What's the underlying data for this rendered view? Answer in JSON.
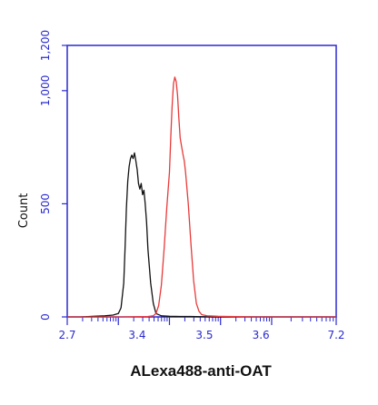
{
  "chart_data": {
    "type": "line",
    "xlabel": "ALexa488-anti-OAT",
    "ylabel": "Count",
    "y_ticks": [
      {
        "value": 0,
        "label": "0"
      },
      {
        "value": 500,
        "label": "500"
      },
      {
        "value": 1000,
        "label": "1,000"
      },
      {
        "value": 1200,
        "label": "1,200"
      }
    ],
    "x_ticks": [
      "2.7",
      "3.4",
      "3.5",
      "3.6",
      "7.2"
    ],
    "ylim": [
      0,
      1200
    ],
    "grid": false,
    "axis_color": "#2a2ad0",
    "series": [
      {
        "color": "#111111",
        "points": [
          [
            0.0,
            0
          ],
          [
            0.05,
            0
          ],
          [
            0.1,
            3
          ],
          [
            0.14,
            5
          ],
          [
            0.17,
            8
          ],
          [
            0.19,
            15
          ],
          [
            0.2,
            40
          ],
          [
            0.21,
            150
          ],
          [
            0.215,
            300
          ],
          [
            0.22,
            480
          ],
          [
            0.225,
            600
          ],
          [
            0.23,
            665
          ],
          [
            0.235,
            700
          ],
          [
            0.24,
            715
          ],
          [
            0.245,
            700
          ],
          [
            0.25,
            725
          ],
          [
            0.255,
            690
          ],
          [
            0.26,
            650
          ],
          [
            0.265,
            590
          ],
          [
            0.27,
            565
          ],
          [
            0.275,
            590
          ],
          [
            0.28,
            540
          ],
          [
            0.285,
            560
          ],
          [
            0.29,
            500
          ],
          [
            0.295,
            420
          ],
          [
            0.3,
            300
          ],
          [
            0.31,
            150
          ],
          [
            0.32,
            60
          ],
          [
            0.33,
            15
          ],
          [
            0.35,
            5
          ],
          [
            0.38,
            3
          ],
          [
            0.42,
            2
          ],
          [
            0.46,
            2
          ],
          [
            0.5,
            1
          ],
          [
            0.55,
            0
          ],
          [
            0.65,
            0
          ],
          [
            0.8,
            0
          ],
          [
            1.0,
            0
          ]
        ]
      },
      {
        "color": "#e83a3a",
        "points": [
          [
            0.0,
            0
          ],
          [
            0.2,
            0
          ],
          [
            0.3,
            2
          ],
          [
            0.32,
            5
          ],
          [
            0.33,
            15
          ],
          [
            0.34,
            50
          ],
          [
            0.35,
            140
          ],
          [
            0.36,
            300
          ],
          [
            0.37,
            480
          ],
          [
            0.38,
            640
          ],
          [
            0.385,
            800
          ],
          [
            0.39,
            930
          ],
          [
            0.395,
            1030
          ],
          [
            0.4,
            1060
          ],
          [
            0.405,
            1040
          ],
          [
            0.41,
            980
          ],
          [
            0.415,
            880
          ],
          [
            0.42,
            790
          ],
          [
            0.43,
            720
          ],
          [
            0.435,
            690
          ],
          [
            0.44,
            640
          ],
          [
            0.45,
            500
          ],
          [
            0.46,
            320
          ],
          [
            0.47,
            160
          ],
          [
            0.48,
            60
          ],
          [
            0.49,
            25
          ],
          [
            0.5,
            10
          ],
          [
            0.52,
            5
          ],
          [
            0.56,
            3
          ],
          [
            0.6,
            2
          ],
          [
            0.65,
            1
          ],
          [
            0.7,
            0
          ],
          [
            1.0,
            0
          ]
        ]
      }
    ]
  }
}
